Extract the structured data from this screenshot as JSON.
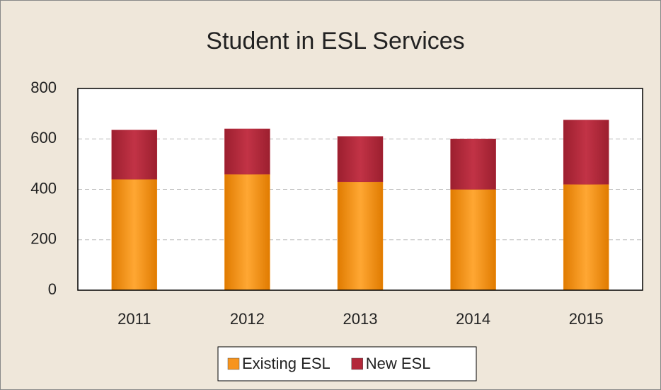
{
  "chart_data": {
    "type": "stacked_bar",
    "title": "Student in ESL Services",
    "categories": [
      "2011",
      "2012",
      "2013",
      "2014",
      "2015"
    ],
    "series": [
      {
        "name": "Existing ESL",
        "color": "#f7941d",
        "values": [
          440,
          460,
          430,
          400,
          420
        ]
      },
      {
        "name": "New ESL",
        "color": "#b3283a",
        "values": [
          195,
          180,
          180,
          200,
          255
        ]
      }
    ],
    "ylim": [
      0,
      800
    ],
    "yticks": [
      0,
      200,
      400,
      600,
      800
    ],
    "grid": true,
    "legend": "bottom"
  }
}
